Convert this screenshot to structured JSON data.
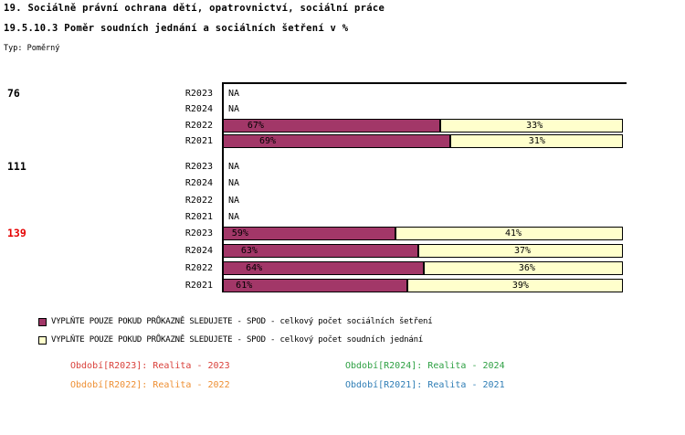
{
  "title": "19. Sociálně právní ochrana dětí, opatrovnictví, sociální práce",
  "subtitle": "19.5.10.3 Poměr soudních jednání a sociálních šetření v %",
  "type_label": "Typ: Poměrný",
  "colors": {
    "group_alert": "#E50000",
    "group_normal": "#000000",
    "axis": "#000000"
  },
  "chart_data": {
    "type": "bar",
    "subtype": "horizontal-stacked-100pct",
    "value_unit": "%",
    "xlim": [
      0,
      100
    ],
    "grid": false,
    "legend_position": "bottom-left",
    "na_text": "NA",
    "series": [
      {
        "name": "VYPLŇTE POUZE POKUD PRŮKAZNĚ SLEDUJETE - SPOD - celkový počet sociálních šetření",
        "color": "#A23768"
      },
      {
        "name": "VYPLŇTE POUZE POKUD PRŮKAZNĚ SLEDUJETE - SPOD - celkový počet soudních jednání",
        "color": "#FFFFCC"
      }
    ],
    "groups": [
      {
        "label": "76",
        "alert": false,
        "rows": [
          {
            "period": "R2023",
            "na": true,
            "na_text": "NA"
          },
          {
            "period": "R2024",
            "na": true,
            "na_text": "NA"
          },
          {
            "period": "R2022",
            "na": false,
            "values": [
              67,
              33
            ],
            "labels": [
              "67%",
              "33%"
            ],
            "bar_pct": [
              54.3,
              45.7
            ],
            "label_x_pct": [
              8.2,
              77.9
            ]
          },
          {
            "period": "R2021",
            "na": false,
            "values": [
              69,
              31
            ],
            "labels": [
              "69%",
              "31%"
            ],
            "bar_pct": [
              56.8,
              43.2
            ],
            "label_x_pct": [
              11.2,
              78.5
            ]
          }
        ]
      },
      {
        "label": "111",
        "alert": false,
        "rows": [
          {
            "period": "R2023",
            "na": true,
            "na_text": "NA"
          },
          {
            "period": "R2024",
            "na": true,
            "na_text": "NA"
          },
          {
            "period": "R2022",
            "na": true,
            "na_text": "NA"
          },
          {
            "period": "R2021",
            "na": true,
            "na_text": "NA"
          }
        ]
      },
      {
        "label": "139",
        "alert": true,
        "rows": [
          {
            "period": "R2023",
            "na": false,
            "values": [
              59,
              41
            ],
            "labels": [
              "59%",
              "41%"
            ],
            "bar_pct": [
              43.2,
              56.8
            ],
            "label_x_pct": [
              4.3,
              72.6
            ]
          },
          {
            "period": "R2024",
            "na": false,
            "values": [
              63,
              37
            ],
            "labels": [
              "63%",
              "37%"
            ],
            "bar_pct": [
              48.9,
              51.1
            ],
            "label_x_pct": [
              6.6,
              74.9
            ]
          },
          {
            "period": "R2022",
            "na": false,
            "values": [
              64,
              36
            ],
            "labels": [
              "64%",
              "36%"
            ],
            "bar_pct": [
              50.2,
              49.8
            ],
            "label_x_pct": [
              7.8,
              76.0
            ]
          },
          {
            "period": "R2021",
            "na": false,
            "values": [
              61,
              39
            ],
            "labels": [
              "61%",
              "39%"
            ],
            "bar_pct": [
              46.1,
              53.9
            ],
            "label_x_pct": [
              5.3,
              74.4
            ]
          }
        ]
      }
    ]
  },
  "footer": [
    {
      "label": "Období[R2023]: Realita - 2023",
      "color": "#D9403A",
      "col": 0,
      "row": 0
    },
    {
      "label": "Období[R2024]: Realita - 2024",
      "color": "#2EA043",
      "col": 1,
      "row": 0
    },
    {
      "label": "Období[R2022]: Realita - 2022",
      "color": "#EE8F33",
      "col": 0,
      "row": 1
    },
    {
      "label": "Období[R2021]: Realita - 2021",
      "color": "#2E7DB5",
      "col": 1,
      "row": 1
    }
  ]
}
